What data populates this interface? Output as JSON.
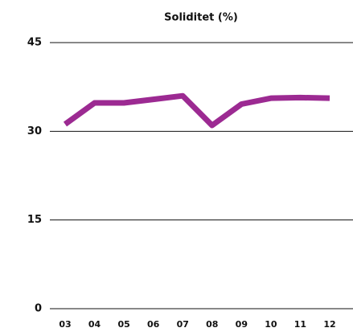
{
  "chart_data": {
    "type": "line",
    "title": "Soliditet (%)",
    "categories": [
      "03",
      "04",
      "05",
      "06",
      "07",
      "08",
      "09",
      "10",
      "11",
      "12"
    ],
    "series": [
      {
        "name": "Soliditet",
        "color": "#9c2a92",
        "values": [
          31.2,
          34.8,
          34.8,
          35.4,
          36.0,
          31.0,
          34.6,
          35.6,
          35.7,
          35.6
        ]
      }
    ],
    "ylim": [
      0,
      45
    ],
    "yticks": [
      0,
      15,
      30,
      45
    ],
    "grid": true
  }
}
